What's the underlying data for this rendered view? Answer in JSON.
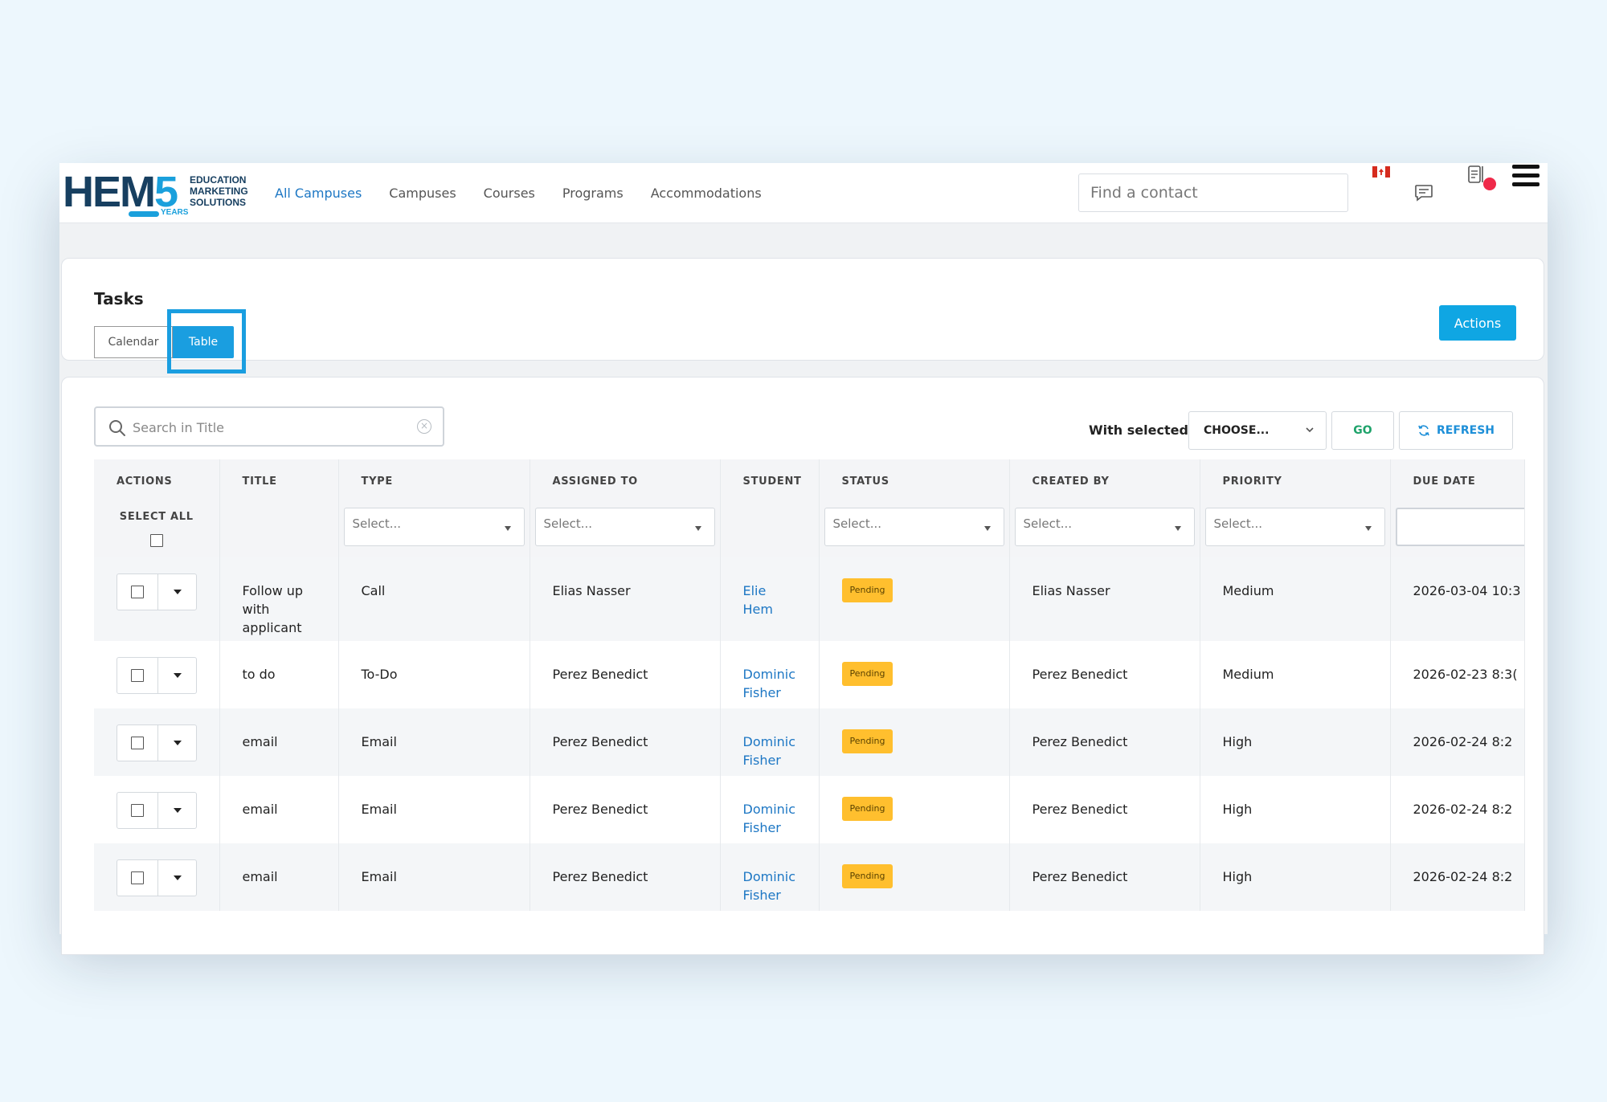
{
  "nav": {
    "logo": {
      "main": "HEM",
      "five": "5",
      "line1": "EDUCATION",
      "line2": "MARKETING",
      "line3": "SOLUTIONS",
      "years": "YEARS"
    },
    "links": [
      "All Campuses",
      "Campuses",
      "Courses",
      "Programs",
      "Accommodations"
    ],
    "active_link": "All Campuses",
    "search_placeholder": "Find a contact",
    "icons": [
      "canada-flag-icon",
      "chat-icon",
      "notifications-icon",
      "hamburger-menu-icon"
    ],
    "notification_dot_color": "#ef2a4a"
  },
  "tasks_header": {
    "title": "Tasks",
    "view_calendar": "Calendar",
    "view_table": "Table",
    "selected_view": "Table",
    "actions_label": "Actions"
  },
  "toolbar": {
    "search_placeholder": "Search in Title",
    "with_selected_label": "With selected:",
    "choose_label": "CHOOSE...",
    "go_label": "GO",
    "refresh_label": "REFRESH"
  },
  "table": {
    "headers": {
      "actions": "ACTIONS",
      "title": "TITLE",
      "type": "TYPE",
      "assigned_to": "ASSIGNED TO",
      "student": "STUDENT",
      "status": "STATUS",
      "created_by": "CREATED BY",
      "priority": "PRIORITY",
      "due_date": "DUE DATE"
    },
    "select_all_label": "SELECT ALL",
    "filter_placeholder": "Select...",
    "rows": [
      {
        "title": "Follow up with applicant",
        "type": "Call",
        "assigned_to": "Elias Nasser",
        "student": "Elie Hem",
        "status": "Pending",
        "created_by": "Elias Nasser",
        "priority": "Medium",
        "due_date": "2026-03-04 10:3"
      },
      {
        "title": "to do",
        "type": "To-Do",
        "assigned_to": "Perez Benedict",
        "student": "Dominic Fisher",
        "status": "Pending",
        "created_by": "Perez Benedict",
        "priority": "Medium",
        "due_date": "2026-02-23 8:3("
      },
      {
        "title": "email",
        "type": "Email",
        "assigned_to": "Perez Benedict",
        "student": "Dominic Fisher",
        "status": "Pending",
        "created_by": "Perez Benedict",
        "priority": "High",
        "due_date": "2026-02-24 8:2"
      },
      {
        "title": "email",
        "type": "Email",
        "assigned_to": "Perez Benedict",
        "student": "Dominic Fisher",
        "status": "Pending",
        "created_by": "Perez Benedict",
        "priority": "High",
        "due_date": "2026-02-24 8:2"
      },
      {
        "title": "email",
        "type": "Email",
        "assigned_to": "Perez Benedict",
        "student": "Dominic Fisher",
        "status": "Pending",
        "created_by": "Perez Benedict",
        "priority": "High",
        "due_date": "2026-02-24 8:2"
      }
    ]
  },
  "colors": {
    "primary": "#1a9ee0",
    "link": "#1d77c4",
    "status_pending": "#ffbf2e",
    "go": "#1fa36b"
  }
}
